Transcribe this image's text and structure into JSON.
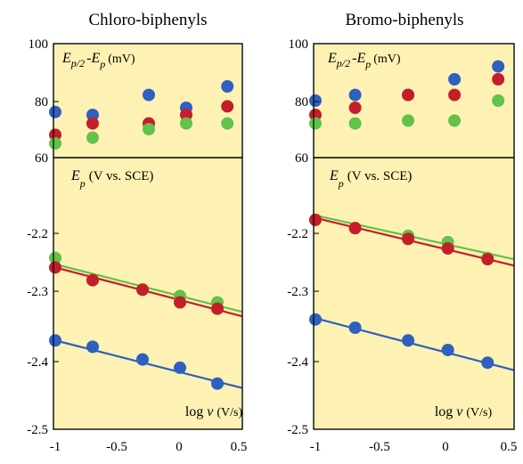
{
  "chart_data": [
    {
      "type": "scatter",
      "title": "Chloro-biphenyls",
      "x_ticks": [
        "-1",
        "-0.5",
        "0",
        "0.5"
      ],
      "xlim": [
        -1,
        0.5
      ],
      "top_panel": {
        "label_main": "E",
        "label_sub1": "p/2",
        "label_mid": "-E",
        "label_sub2": "p",
        "label_unit": "(mV)",
        "ylim": [
          60,
          100
        ],
        "y_ticks": [
          "60",
          "80",
          "100"
        ],
        "series": [
          {
            "color": "#2f5fbf",
            "points": [
              [
                -1,
                76
              ],
              [
                -0.7,
                75
              ],
              [
                -0.25,
                82
              ],
              [
                0.05,
                77.5
              ],
              [
                0.38,
                85
              ]
            ]
          },
          {
            "color": "#c41e2a",
            "points": [
              [
                -1,
                68
              ],
              [
                -0.7,
                72
              ],
              [
                -0.25,
                72
              ],
              [
                0.05,
                75
              ],
              [
                0.38,
                78
              ]
            ]
          },
          {
            "color": "#62c24a",
            "points": [
              [
                -1,
                65
              ],
              [
                -0.7,
                67
              ],
              [
                -0.25,
                70
              ],
              [
                0.05,
                72
              ],
              [
                0.38,
                72
              ]
            ]
          }
        ]
      },
      "bottom_panel": {
        "label_main": "E",
        "label_sub": "p",
        "label_unit": "(V vs. SCE)",
        "x_label_main": "log",
        "x_label_var": "v",
        "x_label_unit": "(V/s)",
        "ylim": [
          -2.5,
          -2.1
        ],
        "y_ticks": [
          "-2.2",
          "-2.3",
          "-2.4",
          "-2.5"
        ],
        "series": [
          {
            "color": "#62c24a",
            "points": [
              [
                -1,
                -2.23
              ],
              [
                -0.7,
                -2.265
              ],
              [
                -0.3,
                -2.28
              ],
              [
                0,
                -2.29
              ],
              [
                0.3,
                -2.3
              ]
            ],
            "fit": [
              [
                -1,
                -2.24
              ],
              [
                0.5,
                -2.315
              ]
            ]
          },
          {
            "color": "#c41e2a",
            "points": [
              [
                -1,
                -2.245
              ],
              [
                -0.7,
                -2.265
              ],
              [
                -0.3,
                -2.28
              ],
              [
                0,
                -2.3
              ],
              [
                0.3,
                -2.31
              ]
            ],
            "fit": [
              [
                -1,
                -2.245
              ],
              [
                0.5,
                -2.322
              ]
            ]
          },
          {
            "color": "#2f5fbf",
            "points": [
              [
                -1,
                -2.36
              ],
              [
                -0.7,
                -2.37
              ],
              [
                -0.3,
                -2.39
              ],
              [
                0,
                -2.403
              ],
              [
                0.3,
                -2.428
              ]
            ],
            "fit": [
              [
                -1,
                -2.36
              ],
              [
                0.5,
                -2.435
              ]
            ]
          }
        ]
      }
    },
    {
      "type": "scatter",
      "title": "Bromo-biphenyls",
      "x_ticks": [
        "-1",
        "-0.5",
        "0",
        "0.5"
      ],
      "xlim": [
        -1,
        0.5
      ],
      "top_panel": {
        "label_main": "E",
        "label_sub1": "p/2",
        "label_mid": "-E",
        "label_sub2": "p",
        "label_unit": "(mV)",
        "ylim": [
          60,
          100
        ],
        "y_ticks": [
          "60",
          "80",
          "100"
        ],
        "series": [
          {
            "color": "#2f5fbf",
            "points": [
              [
                -1,
                80
              ],
              [
                -0.7,
                82
              ],
              [
                -0.3,
                82
              ],
              [
                0.05,
                87.5
              ],
              [
                0.38,
                92
              ]
            ]
          },
          {
            "color": "#c41e2a",
            "points": [
              [
                -1,
                75
              ],
              [
                -0.7,
                77.5
              ],
              [
                -0.3,
                82
              ],
              [
                0.05,
                82
              ],
              [
                0.38,
                87.5
              ]
            ]
          },
          {
            "color": "#62c24a",
            "points": [
              [
                -1,
                72
              ],
              [
                -0.7,
                72
              ],
              [
                -0.3,
                73
              ],
              [
                0.05,
                73
              ],
              [
                0.38,
                80
              ]
            ]
          }
        ]
      },
      "bottom_panel": {
        "label_main": "E",
        "label_sub": "p",
        "label_unit": "(V vs. SCE)",
        "x_label_main": "log",
        "x_label_var": "v",
        "x_label_unit": "(V/s)",
        "ylim": [
          -2.5,
          -2.1
        ],
        "y_ticks": [
          "-2.2",
          "-2.3",
          "-2.4",
          "-2.5"
        ],
        "series": [
          {
            "color": "#62c24a",
            "points": [
              [
                -1,
                -2.17
              ],
              [
                -0.7,
                -2.183
              ],
              [
                -0.3,
                -2.195
              ],
              [
                0,
                -2.205
              ],
              [
                0.3,
                -2.23
              ]
            ],
            "fit": [
              [
                -1,
                -2.163
              ],
              [
                0.5,
                -2.232
              ]
            ]
          },
          {
            "color": "#c41e2a",
            "points": [
              [
                -1,
                -2.17
              ],
              [
                -0.7,
                -2.183
              ],
              [
                -0.3,
                -2.2
              ],
              [
                0,
                -2.215
              ],
              [
                0.3,
                -2.232
              ]
            ],
            "fit": [
              [
                -1,
                -2.167
              ],
              [
                0.5,
                -2.242
              ]
            ]
          },
          {
            "color": "#2f5fbf",
            "points": [
              [
                -1,
                -2.327
              ],
              [
                -0.7,
                -2.34
              ],
              [
                -0.3,
                -2.36
              ],
              [
                0,
                -2.375
              ],
              [
                0.3,
                -2.395
              ]
            ],
            "fit": [
              [
                -1,
                -2.325
              ],
              [
                0.5,
                -2.407
              ]
            ]
          }
        ]
      }
    }
  ]
}
